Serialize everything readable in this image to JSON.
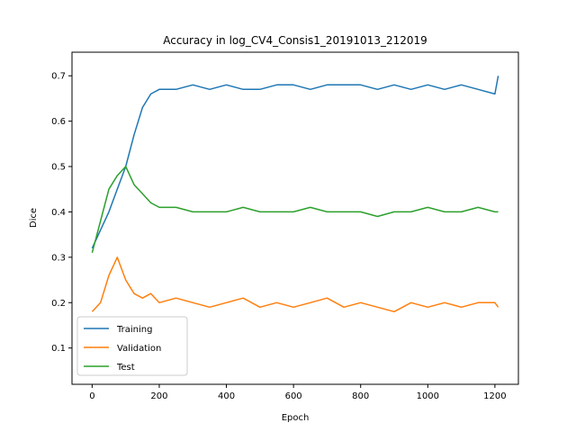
{
  "chart_data": {
    "type": "line",
    "title": "Accuracy in log_CV4_Consis1_20191013_212019",
    "xlabel": "Epoch",
    "ylabel": "Dice",
    "xlim": [
      -60,
      1270
    ],
    "ylim": [
      0.02,
      0.752
    ],
    "xticks": [
      0,
      200,
      400,
      600,
      800,
      1000,
      1200
    ],
    "yticks": [
      0.1,
      0.2,
      0.3,
      0.4,
      0.5,
      0.6,
      0.7
    ],
    "xtick_labels": [
      "0",
      "200",
      "400",
      "600",
      "800",
      "1000",
      "1200"
    ],
    "ytick_labels": [
      "0.1",
      "0.2",
      "0.3",
      "0.4",
      "0.5",
      "0.6",
      "0.7"
    ],
    "grid": false,
    "legend_position": "lower-left",
    "x": [
      0,
      25,
      50,
      75,
      100,
      125,
      150,
      175,
      200,
      250,
      300,
      350,
      400,
      450,
      500,
      550,
      600,
      650,
      700,
      750,
      800,
      850,
      900,
      950,
      1000,
      1050,
      1100,
      1150,
      1200,
      1210
    ],
    "series": [
      {
        "name": "Training",
        "color": "#1f77b4",
        "values": [
          0.32,
          0.36,
          0.4,
          0.45,
          0.5,
          0.57,
          0.63,
          0.66,
          0.67,
          0.67,
          0.68,
          0.67,
          0.68,
          0.67,
          0.67,
          0.68,
          0.68,
          0.67,
          0.68,
          0.68,
          0.68,
          0.67,
          0.68,
          0.67,
          0.68,
          0.67,
          0.68,
          0.67,
          0.66,
          0.7
        ]
      },
      {
        "name": "Validation",
        "color": "#ff7f0e",
        "values": [
          0.18,
          0.2,
          0.26,
          0.3,
          0.25,
          0.22,
          0.21,
          0.22,
          0.2,
          0.21,
          0.2,
          0.19,
          0.2,
          0.21,
          0.19,
          0.2,
          0.19,
          0.2,
          0.21,
          0.19,
          0.2,
          0.19,
          0.18,
          0.2,
          0.19,
          0.2,
          0.19,
          0.2,
          0.2,
          0.19
        ]
      },
      {
        "name": "Test",
        "color": "#2ca02c",
        "values": [
          0.31,
          0.38,
          0.45,
          0.48,
          0.5,
          0.46,
          0.44,
          0.42,
          0.41,
          0.41,
          0.4,
          0.4,
          0.4,
          0.41,
          0.4,
          0.4,
          0.4,
          0.41,
          0.4,
          0.4,
          0.4,
          0.39,
          0.4,
          0.4,
          0.41,
          0.4,
          0.4,
          0.41,
          0.4,
          0.4
        ]
      }
    ]
  }
}
